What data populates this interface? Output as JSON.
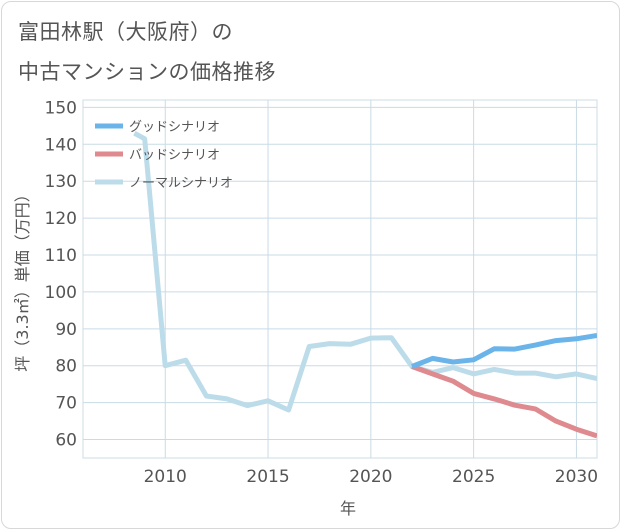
{
  "title_line1": "富田林駅（大阪府）の",
  "title_line2": "中古マンションの価格推移",
  "chart_data": {
    "type": "line",
    "xlabel": "年",
    "ylabel": "坪（3.3㎡）単価（万円）",
    "xlim": [
      2006,
      2031
    ],
    "ylim": [
      55,
      152
    ],
    "xticks": [
      2010,
      2015,
      2020,
      2025,
      2030
    ],
    "yticks": [
      60,
      70,
      80,
      90,
      100,
      110,
      120,
      130,
      140,
      150
    ],
    "grid": true,
    "legend_position": "top-left",
    "series": [
      {
        "name": "グッドシナリオ",
        "color": "#6ab4ea",
        "x": [
          2022,
          2023,
          2024,
          2025,
          2026,
          2027,
          2028,
          2029,
          2030,
          2031
        ],
        "y": [
          79.8,
          82.0,
          81.0,
          81.6,
          84.6,
          84.5,
          85.6,
          86.8,
          87.3,
          88.2
        ]
      },
      {
        "name": "バッドシナリオ",
        "color": "#de8a8e",
        "x": [
          2022,
          2023,
          2024,
          2025,
          2026,
          2027,
          2028,
          2029,
          2030,
          2031
        ],
        "y": [
          79.8,
          77.8,
          75.8,
          72.5,
          71.0,
          69.3,
          68.3,
          65.0,
          62.8,
          61.0
        ]
      },
      {
        "name": "ノーマルシナリオ",
        "color": "#bcdcea",
        "x": [
          2008.5,
          2009,
          2010,
          2011,
          2012,
          2013,
          2014,
          2015,
          2016,
          2017,
          2018,
          2019,
          2020,
          2021,
          2022,
          2023,
          2024,
          2025,
          2026,
          2027,
          2028,
          2029,
          2030,
          2031
        ],
        "y": [
          143,
          141.5,
          80,
          81.5,
          71.8,
          71.0,
          69.2,
          70.5,
          68.0,
          85.2,
          86.0,
          85.8,
          87.5,
          87.6,
          79.8,
          78.2,
          79.5,
          77.8,
          79.0,
          78.0,
          78.0,
          77.0,
          77.8,
          76.5
        ]
      }
    ]
  }
}
